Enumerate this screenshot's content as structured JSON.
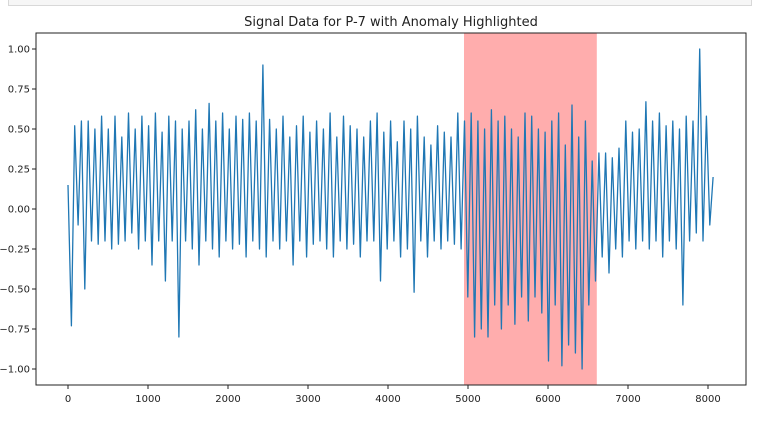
{
  "chart_data": {
    "type": "line",
    "title": "Signal Data for P-7 with Anomaly Highlighted",
    "xlabel": "",
    "ylabel": "",
    "xlim": [
      -400,
      8475
    ],
    "ylim": [
      -1.1,
      1.1
    ],
    "grid": false,
    "x_ticks": [
      0,
      1000,
      2000,
      3000,
      4000,
      5000,
      6000,
      7000,
      8000
    ],
    "x_tick_labels": [
      "0",
      "1000",
      "2000",
      "3000",
      "4000",
      "5000",
      "6000",
      "7000",
      "8000"
    ],
    "y_ticks": [
      1.0,
      0.75,
      0.5,
      0.25,
      0.0,
      -0.25,
      -0.5,
      -0.75,
      -1.0
    ],
    "y_tick_labels": [
      "1.00",
      "0.75",
      "0.50",
      "0.25",
      "0.00",
      "−0.25",
      "−0.50",
      "−0.75",
      "−1.00"
    ],
    "anomaly_span": {
      "start": 4950,
      "end": 6610,
      "color": "#ff9999",
      "opacity": 0.8
    },
    "line_color": "#1f77b4",
    "series": [
      {
        "x": [
          0,
          42,
          84,
          126,
          168,
          210,
          252,
          294,
          336,
          378,
          420,
          462,
          504,
          546,
          588,
          630,
          672,
          714,
          756,
          798,
          840,
          882,
          924,
          966,
          1008,
          1050,
          1092,
          1134,
          1176,
          1218,
          1260,
          1302,
          1344,
          1386,
          1428,
          1470,
          1512,
          1554,
          1596,
          1638,
          1680,
          1722,
          1764,
          1806,
          1848,
          1890,
          1932,
          1974,
          2016,
          2058,
          2100,
          2142,
          2184,
          2226,
          2268,
          2310,
          2352,
          2394,
          2436,
          2478,
          2520,
          2562,
          2604,
          2646,
          2688,
          2730,
          2772,
          2814,
          2856,
          2898,
          2940,
          2982,
          3024,
          3066,
          3108,
          3150,
          3192,
          3234,
          3276,
          3318,
          3360,
          3402,
          3444,
          3486,
          3528,
          3570,
          3612,
          3654,
          3696,
          3738,
          3780,
          3822,
          3864,
          3906,
          3948,
          3990,
          4032,
          4074,
          4116,
          4158,
          4200,
          4242,
          4284,
          4326,
          4368,
          4410,
          4452,
          4494,
          4536,
          4578,
          4620,
          4662,
          4704,
          4746,
          4788,
          4830,
          4872,
          4914,
          4956,
          4998,
          5040,
          5082,
          5124,
          5166,
          5208,
          5250,
          5292,
          5334,
          5376,
          5418,
          5460,
          5502,
          5544,
          5586,
          5628,
          5670,
          5712,
          5754,
          5796,
          5838,
          5880,
          5922,
          5964,
          6006,
          6048,
          6090,
          6132,
          6174,
          6216,
          6258,
          6300,
          6342,
          6384,
          6426,
          6468,
          6510,
          6552,
          6594,
          6636,
          6678,
          6720,
          6762,
          6804,
          6846,
          6888,
          6930,
          6972,
          7014,
          7056,
          7098,
          7140,
          7182,
          7224,
          7266,
          7308,
          7350,
          7392,
          7434,
          7476,
          7518,
          7560,
          7602,
          7644,
          7686,
          7728,
          7770,
          7812,
          7854,
          7896,
          7938,
          7980,
          8022,
          8064
        ],
        "y": [
          0.15,
          -0.73,
          0.52,
          -0.1,
          0.55,
          -0.5,
          0.55,
          -0.2,
          0.5,
          -0.22,
          0.58,
          -0.2,
          0.5,
          -0.25,
          0.58,
          -0.22,
          0.45,
          -0.2,
          0.6,
          -0.15,
          0.5,
          -0.25,
          0.58,
          -0.2,
          0.52,
          -0.35,
          0.6,
          -0.2,
          0.48,
          -0.45,
          0.58,
          -0.2,
          0.55,
          -0.8,
          0.5,
          -0.2,
          0.55,
          -0.25,
          0.62,
          -0.35,
          0.5,
          -0.2,
          0.66,
          -0.25,
          0.55,
          -0.3,
          0.6,
          -0.2,
          0.5,
          -0.25,
          0.58,
          -0.22,
          0.56,
          -0.3,
          0.6,
          -0.2,
          0.55,
          -0.25,
          0.9,
          -0.3,
          0.56,
          -0.2,
          0.5,
          -0.25,
          0.58,
          -0.2,
          0.45,
          -0.35,
          0.52,
          -0.2,
          0.58,
          -0.3,
          0.48,
          -0.22,
          0.55,
          -0.2,
          0.5,
          -0.25,
          0.6,
          -0.3,
          0.45,
          -0.2,
          0.58,
          -0.25,
          0.52,
          -0.22,
          0.5,
          -0.3,
          0.45,
          -0.2,
          0.55,
          -0.2,
          0.6,
          -0.45,
          0.48,
          -0.25,
          0.55,
          -0.2,
          0.42,
          -0.3,
          0.55,
          -0.25,
          0.5,
          -0.52,
          0.58,
          -0.2,
          0.45,
          -0.3,
          0.4,
          -0.2,
          0.52,
          -0.25,
          0.48,
          -0.2,
          0.45,
          -0.22,
          0.6,
          -0.25,
          0.55,
          -0.55,
          0.6,
          -0.8,
          0.55,
          -0.75,
          0.5,
          -0.8,
          0.62,
          -0.6,
          0.55,
          -0.75,
          0.58,
          -0.6,
          0.5,
          -0.72,
          0.45,
          -0.55,
          0.6,
          -0.7,
          0.58,
          -0.55,
          0.5,
          -0.65,
          0.48,
          -0.95,
          0.55,
          -0.6,
          0.6,
          -0.98,
          0.4,
          -0.85,
          0.65,
          -0.9,
          0.45,
          -1.0,
          0.55,
          -0.6,
          0.3,
          -0.45,
          0.35,
          -0.3,
          0.35,
          -0.4,
          0.32,
          -0.25,
          0.38,
          -0.3,
          0.55,
          -0.2,
          0.48,
          -0.25,
          0.5,
          -0.2,
          0.67,
          -0.25,
          0.55,
          -0.2,
          0.6,
          -0.3,
          0.52,
          -0.2,
          0.55,
          -0.25,
          0.5,
          -0.6,
          0.58,
          -0.2,
          0.55,
          -0.15,
          1.0,
          -0.2,
          0.58,
          -0.1,
          0.2
        ]
      }
    ]
  }
}
